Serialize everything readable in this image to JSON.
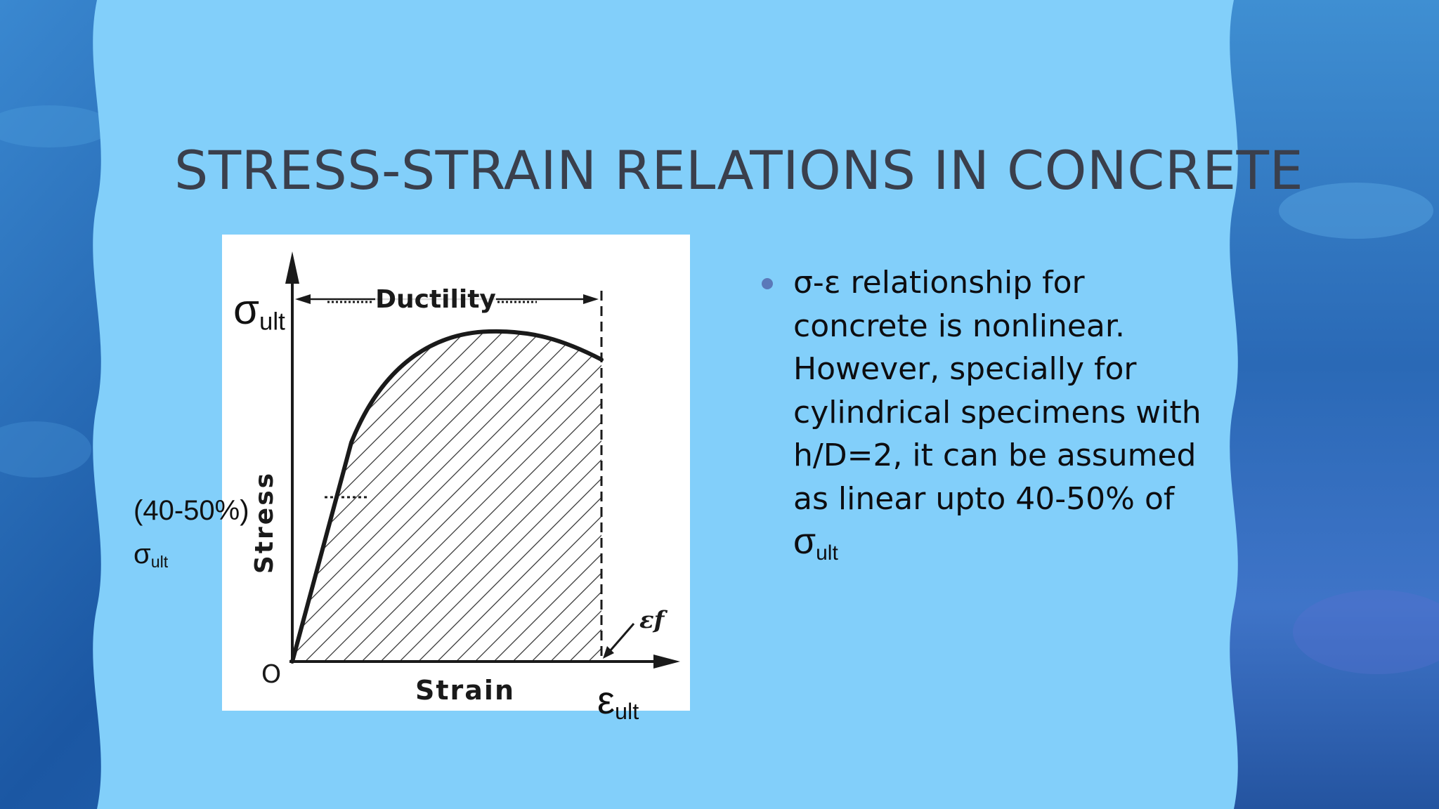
{
  "slide": {
    "title": "STRESS-STRAIN RELATIONS IN CONCRETE",
    "colors": {
      "panel": "#82cffa",
      "frame": "#1f5fa8",
      "title": "#3a3f4c",
      "bullet": "#5b79b9"
    }
  },
  "figure": {
    "ductility_label": "Ductility",
    "y_axis_label": "Stress",
    "x_axis_label": "Strain",
    "origin_label": "O",
    "failure_strain_label": "εf"
  },
  "annotations": {
    "sigma_ult_symbol": "σ",
    "sigma_ult_sub": "ult",
    "pct_label": "(40-50%)",
    "pct_sigma_symbol": "σ",
    "pct_sigma_sub": "ult",
    "eps_ult_symbol": "ε",
    "eps_ult_sub": "ult"
  },
  "bullet": {
    "lines": [
      "σ-ε relationship for",
      "concrete is nonlinear.",
      "However, specially for",
      "cylindrical specimens with",
      "h/D=2, it can be assumed",
      "as linear upto 40-50% of"
    ],
    "final_symbol": "σ",
    "final_sub": "ult"
  }
}
